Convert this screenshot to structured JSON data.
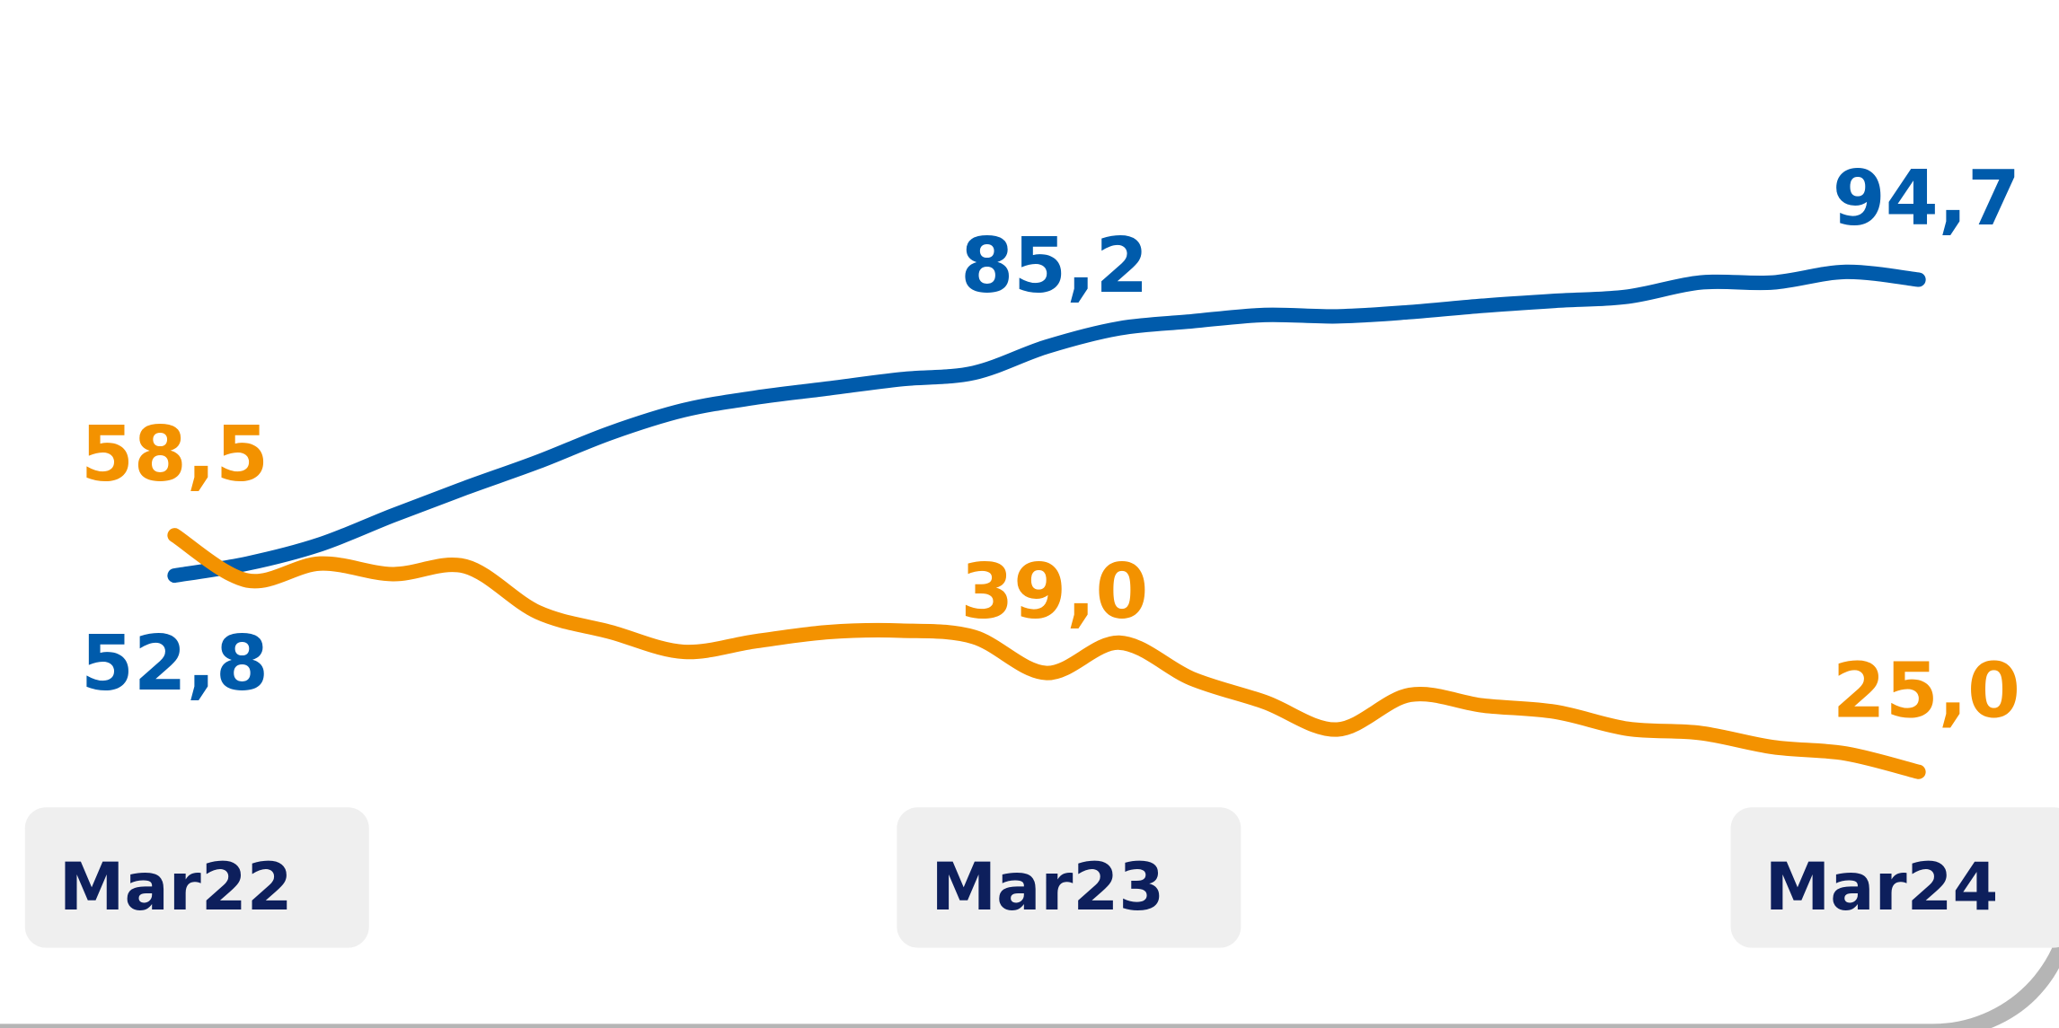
{
  "chart_data": {
    "type": "line",
    "categories": [
      "Mar22",
      null,
      null,
      null,
      null,
      null,
      null,
      null,
      null,
      null,
      null,
      null,
      "Mar23",
      null,
      null,
      null,
      null,
      null,
      null,
      null,
      null,
      null,
      null,
      null,
      "Mar24"
    ],
    "series": [
      {
        "color": "#005bab",
        "values": [
          52.8,
          54.5,
          57.2,
          61.3,
          65.2,
          68.9,
          73.0,
          76.2,
          78.0,
          79.3,
          80.6,
          81.5,
          85.2,
          87.8,
          88.8,
          89.7,
          89.5,
          90.1,
          91.0,
          91.7,
          92.3,
          94.3,
          94.3,
          95.8,
          94.7
        ],
        "value_labels": [
          "52,8",
          null,
          null,
          null,
          null,
          null,
          null,
          null,
          null,
          null,
          null,
          null,
          "85,2",
          null,
          null,
          null,
          null,
          null,
          null,
          null,
          null,
          null,
          null,
          null,
          "94,7"
        ]
      },
      {
        "color": "#f39200",
        "values": [
          58.5,
          52.1,
          54.5,
          53.0,
          54.1,
          47.6,
          44.8,
          42.0,
          43.5,
          44.8,
          45.0,
          44.1,
          39.0,
          43.3,
          38.2,
          34.9,
          31.0,
          35.9,
          34.4,
          33.5,
          31.1,
          30.5,
          28.5,
          27.6,
          25.0
        ],
        "value_labels": [
          "58,5",
          null,
          null,
          null,
          null,
          null,
          null,
          null,
          null,
          null,
          null,
          null,
          "39,0",
          null,
          null,
          null,
          null,
          null,
          null,
          null,
          null,
          null,
          null,
          null,
          "25,0"
        ]
      }
    ]
  }
}
